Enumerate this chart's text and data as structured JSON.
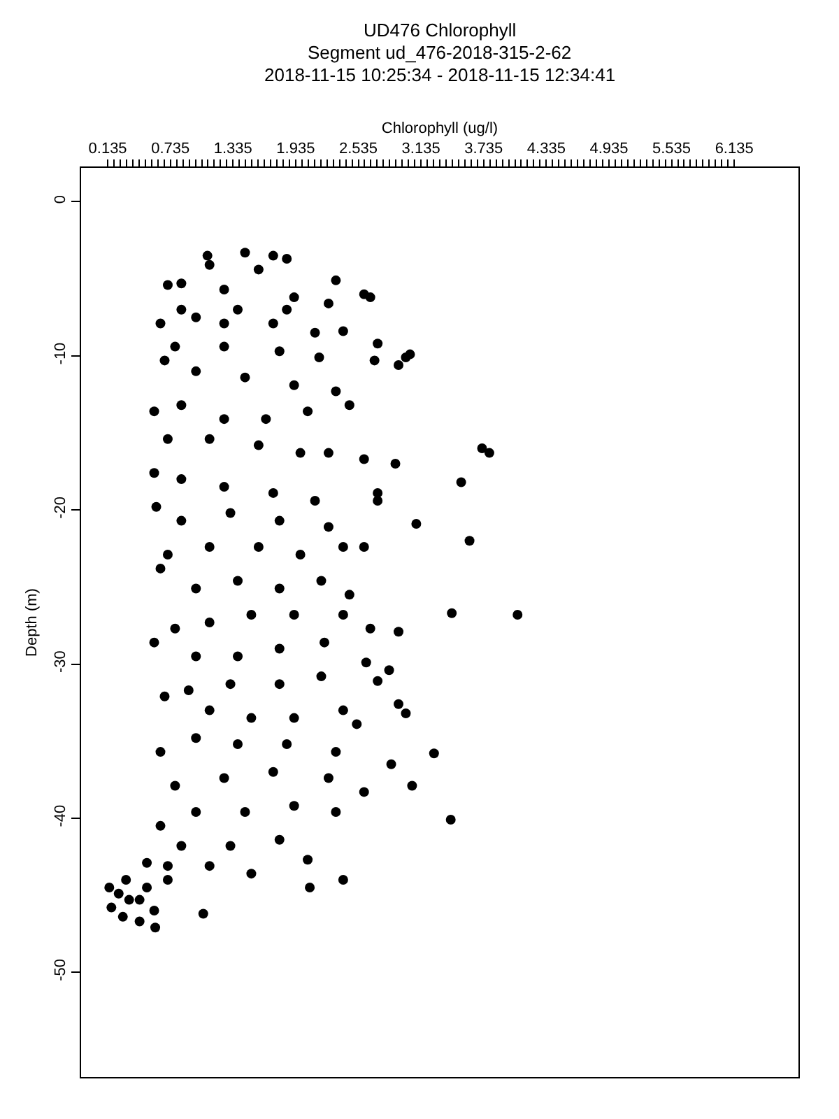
{
  "chart_data": {
    "type": "scatter",
    "title": "UD476 Chlorophyll",
    "subtitle": "Segment ud_476-2018-315-2-62\n2018-11-15 10:25:34 - 2018-11-15 12:34:41",
    "xlabel": "Chlorophyll (ug/l)",
    "ylabel": "Depth (m)",
    "x": [
      1.09,
      1.45,
      1.72,
      1.85,
      1.58,
      1.11,
      0.71,
      0.84,
      1.25,
      1.92,
      2.32,
      2.59,
      2.65,
      2.25,
      1.85,
      1.38,
      0.84,
      0.98,
      0.64,
      1.25,
      1.72,
      2.12,
      2.39,
      2.72,
      2.99,
      3.03,
      2.92,
      2.69,
      2.16,
      1.78,
      1.25,
      0.78,
      0.68,
      0.98,
      1.45,
      1.92,
      2.32,
      2.45,
      2.05,
      1.65,
      1.25,
      0.84,
      0.58,
      0.71,
      1.11,
      1.58,
      1.98,
      2.25,
      2.59,
      2.89,
      3.72,
      3.79,
      3.52,
      2.72,
      2.12,
      1.72,
      1.25,
      0.84,
      0.58,
      0.6,
      0.84,
      1.31,
      1.78,
      2.25,
      2.72,
      3.09,
      2.59,
      2.39,
      3.6,
      1.98,
      1.58,
      1.11,
      0.71,
      0.64,
      0.98,
      1.38,
      1.78,
      2.18,
      2.45,
      4.06,
      3.43,
      2.65,
      2.92,
      2.39,
      1.92,
      1.51,
      1.11,
      0.78,
      0.58,
      0.98,
      1.38,
      1.78,
      2.21,
      2.61,
      2.83,
      2.72,
      2.18,
      1.78,
      1.31,
      0.91,
      0.68,
      1.11,
      1.51,
      1.92,
      2.39,
      2.92,
      2.99,
      2.52,
      3.26,
      3.05,
      3.42,
      2.85,
      2.32,
      1.85,
      1.38,
      0.98,
      0.64,
      0.78,
      1.25,
      1.72,
      2.25,
      2.59,
      2.32,
      1.92,
      1.45,
      0.98,
      0.64,
      0.84,
      1.31,
      1.78,
      2.05,
      2.39,
      2.07,
      1.51,
      1.11,
      0.71,
      0.51,
      0.44,
      0.31,
      0.24,
      0.17,
      0.28,
      0.44,
      0.58,
      0.59,
      0.15,
      1.05,
      0.71,
      0.34,
      0.51
    ],
    "values": [
      -3.5,
      -3.3,
      -3.5,
      -3.7,
      -4.4,
      -4.1,
      -5.4,
      -5.3,
      -5.7,
      -6.2,
      -5.1,
      -6.0,
      -6.2,
      -6.6,
      -7.0,
      -7.0,
      -7.0,
      -7.5,
      -7.9,
      -7.9,
      -7.9,
      -8.5,
      -8.4,
      -9.2,
      -10.1,
      -9.9,
      -10.6,
      -10.3,
      -10.1,
      -9.7,
      -9.4,
      -9.4,
      -10.3,
      -11.0,
      -11.4,
      -11.9,
      -12.3,
      -13.2,
      -13.6,
      -14.1,
      -14.1,
      -13.2,
      -13.6,
      -15.4,
      -15.4,
      -15.8,
      -16.3,
      -16.3,
      -16.7,
      -17.0,
      -16.0,
      -16.3,
      -18.2,
      -18.9,
      -19.4,
      -18.9,
      -18.5,
      -18.0,
      -17.6,
      -19.8,
      -20.7,
      -20.2,
      -20.7,
      -21.1,
      -19.4,
      -20.9,
      -22.4,
      -22.4,
      -22.0,
      -22.9,
      -22.4,
      -22.4,
      -22.9,
      -23.8,
      -25.1,
      -24.6,
      -25.1,
      -24.6,
      -25.5,
      -26.8,
      -26.7,
      -27.7,
      -27.9,
      -26.8,
      -26.8,
      -26.8,
      -27.3,
      -27.7,
      -28.6,
      -29.5,
      -29.5,
      -29.0,
      -28.6,
      -29.9,
      -30.4,
      -31.1,
      -30.8,
      -31.3,
      -31.3,
      -31.7,
      -32.1,
      -33.0,
      -33.5,
      -33.5,
      -33.0,
      -32.6,
      -33.2,
      -33.9,
      -35.8,
      -37.9,
      -40.1,
      -36.5,
      -35.7,
      -35.2,
      -35.2,
      -34.8,
      -35.7,
      -37.9,
      -37.4,
      -37.0,
      -37.4,
      -38.3,
      -39.6,
      -39.2,
      -39.6,
      -39.6,
      -40.5,
      -41.8,
      -41.8,
      -41.4,
      -42.7,
      -44.0,
      -44.5,
      -43.6,
      -43.1,
      -43.1,
      -42.9,
      -45.3,
      -44.0,
      -44.9,
      -45.8,
      -46.4,
      -46.7,
      -46.0,
      -47.1,
      -44.5,
      -46.2,
      -44.0,
      -45.3,
      -44.5
    ],
    "color": "#000000",
    "marker": "circle",
    "grid": false,
    "xlim": [
      -0.12,
      6.75
    ],
    "ylim": [
      -56.8,
      2.2
    ],
    "xticks": [
      0.135,
      {
        "value": 0.195,
        "label": null
      },
      {
        "value": 0.255,
        "label": null
      },
      {
        "value": 0.315,
        "label": null
      },
      {
        "value": 0.375,
        "label": null
      },
      {
        "value": 0.435,
        "label": null
      },
      {
        "value": 0.495,
        "label": null
      },
      {
        "value": 0.555,
        "label": null
      },
      {
        "value": 0.615,
        "label": null
      },
      {
        "value": 0.675,
        "label": null
      },
      0.735,
      {
        "value": 0.795,
        "label": null
      },
      {
        "value": 0.855,
        "label": null
      },
      {
        "value": 0.915,
        "label": null
      },
      {
        "value": 0.975,
        "label": null
      },
      {
        "value": 1.035,
        "label": null
      },
      {
        "value": 1.095,
        "label": null
      },
      {
        "value": 1.155,
        "label": null
      },
      {
        "value": 1.215,
        "label": null
      },
      {
        "value": 1.275,
        "label": null
      },
      1.335,
      {
        "value": 1.395,
        "label": null
      },
      {
        "value": 1.455,
        "label": null
      },
      {
        "value": 1.515,
        "label": null
      },
      {
        "value": 1.575,
        "label": null
      },
      {
        "value": 1.635,
        "label": null
      },
      {
        "value": 1.695,
        "label": null
      },
      {
        "value": 1.755,
        "label": null
      },
      {
        "value": 1.815,
        "label": null
      },
      {
        "value": 1.875,
        "label": null
      },
      1.935,
      {
        "value": 1.995,
        "label": null
      },
      {
        "value": 2.055,
        "label": null
      },
      {
        "value": 2.115,
        "label": null
      },
      {
        "value": 2.175,
        "label": null
      },
      {
        "value": 2.235,
        "label": null
      },
      {
        "value": 2.295,
        "label": null
      },
      {
        "value": 2.355,
        "label": null
      },
      {
        "value": 2.415,
        "label": null
      },
      {
        "value": 2.475,
        "label": null
      },
      2.535,
      {
        "value": 2.595,
        "label": null
      },
      {
        "value": 2.655,
        "label": null
      },
      {
        "value": 2.715,
        "label": null
      },
      {
        "value": 2.775,
        "label": null
      },
      {
        "value": 2.835,
        "label": null
      },
      {
        "value": 2.895,
        "label": null
      },
      {
        "value": 2.955,
        "label": null
      },
      {
        "value": 3.015,
        "label": null
      },
      {
        "value": 3.075,
        "label": null
      },
      3.135,
      {
        "value": 3.195,
        "label": null
      },
      {
        "value": 3.255,
        "label": null
      },
      {
        "value": 3.315,
        "label": null
      },
      {
        "value": 3.375,
        "label": null
      },
      {
        "value": 3.435,
        "label": null
      },
      {
        "value": 3.495,
        "label": null
      },
      {
        "value": 3.555,
        "label": null
      },
      {
        "value": 3.615,
        "label": null
      },
      {
        "value": 3.675,
        "label": null
      },
      3.735,
      {
        "value": 3.795,
        "label": null
      },
      {
        "value": 3.855,
        "label": null
      },
      {
        "value": 3.915,
        "label": null
      },
      {
        "value": 3.975,
        "label": null
      },
      {
        "value": 4.035,
        "label": null
      },
      {
        "value": 4.095,
        "label": null
      },
      {
        "value": 4.155,
        "label": null
      },
      {
        "value": 4.215,
        "label": null
      },
      {
        "value": 4.275,
        "label": null
      },
      4.335,
      {
        "value": 4.395,
        "label": null
      },
      {
        "value": 4.455,
        "label": null
      },
      {
        "value": 4.515,
        "label": null
      },
      {
        "value": 4.575,
        "label": null
      },
      {
        "value": 4.635,
        "label": null
      },
      {
        "value": 4.695,
        "label": null
      },
      {
        "value": 4.755,
        "label": null
      },
      {
        "value": 4.815,
        "label": null
      },
      {
        "value": 4.875,
        "label": null
      },
      4.935,
      {
        "value": 4.995,
        "label": null
      },
      {
        "value": 5.055,
        "label": null
      },
      {
        "value": 5.115,
        "label": null
      },
      {
        "value": 5.175,
        "label": null
      },
      {
        "value": 5.235,
        "label": null
      },
      {
        "value": 5.295,
        "label": null
      },
      {
        "value": 5.355,
        "label": null
      },
      {
        "value": 5.415,
        "label": null
      },
      {
        "value": 5.475,
        "label": null
      },
      5.535,
      {
        "value": 5.595,
        "label": null
      },
      {
        "value": 5.655,
        "label": null
      },
      {
        "value": 5.715,
        "label": null
      },
      {
        "value": 5.775,
        "label": null
      },
      {
        "value": 5.835,
        "label": null
      },
      {
        "value": 5.895,
        "label": null
      },
      {
        "value": 5.955,
        "label": null
      },
      {
        "value": 6.015,
        "label": null
      },
      {
        "value": 6.075,
        "label": null
      },
      6.135
    ],
    "yticks": [
      0,
      -10,
      -20,
      -30,
      -40,
      -50
    ]
  }
}
